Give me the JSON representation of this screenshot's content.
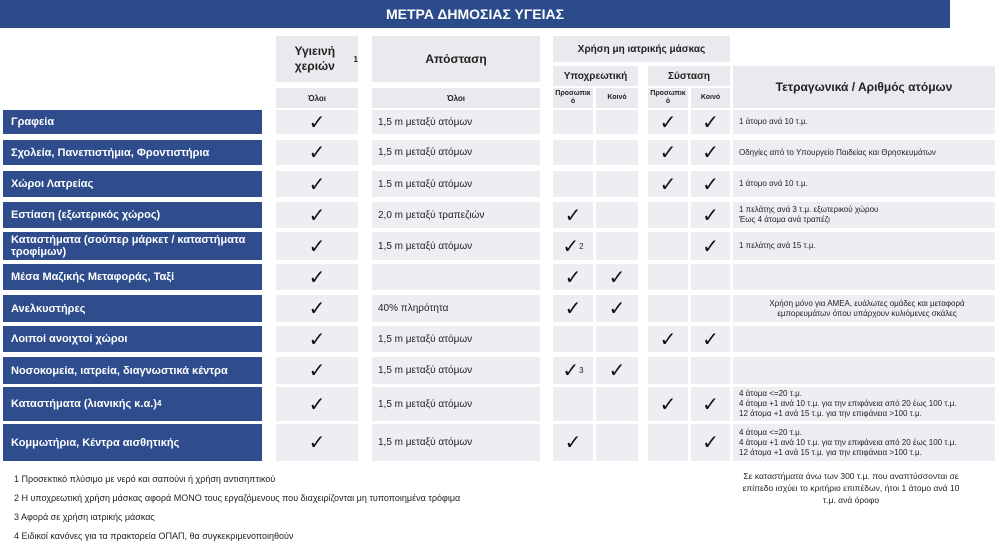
{
  "header": {
    "title": "ΜΕΤΡΑ ΔΗΜΟΣΙΑΣ ΥΓΕΙΑΣ"
  },
  "columns": {
    "hygiene": {
      "title": "Υγιεινή χεριών",
      "note": "1",
      "sub": "Όλοι"
    },
    "distance": {
      "title": "Απόσταση",
      "sub": "Όλοι"
    },
    "mask": {
      "title": "Χρήση μη ιατρικής μάσκας",
      "groups": [
        {
          "title": "Υποχρεωτική",
          "subs": [
            "Προσωπικό",
            "Κοινό"
          ]
        },
        {
          "title": "Σύσταση",
          "subs": [
            "Προσωπικό",
            "Κοινό"
          ]
        }
      ]
    },
    "area": {
      "title": "Τετραγωνικά / Αριθμός ατόμων"
    }
  },
  "rows": [
    {
      "label": "Γραφεία",
      "cells": [
        "✓",
        "1,5 m μεταξύ ατόμων",
        null,
        null,
        "✓",
        "✓"
      ],
      "area": [
        "1 άτομο ανά 10 τ.μ."
      ]
    },
    {
      "label": "Σχολεία, Πανεπιστήμια, Φροντιστήρια",
      "cells": [
        "✓",
        "1,5 m μεταξύ ατόμων",
        null,
        null,
        "✓",
        "✓"
      ],
      "area": [
        "Οδηγίες από το Υπουργείο Παιδείας και Θρησκευμάτων"
      ]
    },
    {
      "label": "Χώροι Λατρείας",
      "cells": [
        "✓",
        "1.5 m μεταξύ ατόμων",
        null,
        null,
        "✓",
        "✓"
      ],
      "area": [
        "1 άτομο ανά 10 τ.μ."
      ]
    },
    {
      "label": "Εστίαση (εξωτερικός χώρος)",
      "cells": [
        "✓",
        "2,0 m μεταξύ τραπεζιών",
        "✓",
        null,
        null,
        "✓"
      ],
      "area": [
        "1 πελάτης ανά 3 τ.μ. εξωτερικού χώρου",
        "Έως 4 άτομα ανά τραπέζι"
      ]
    },
    {
      "label": "Καταστήματα (σούπερ μάρκετ / καταστήματα τροφίμων)",
      "cells": [
        "✓",
        "1,5 m μεταξύ ατόμων",
        {
          "mark": "✓",
          "note": "2"
        },
        null,
        null,
        "✓"
      ],
      "area": [
        "1 πελάτης ανά 15 τ.μ."
      ]
    },
    {
      "label": "Μέσα Μαζικής Μεταφοράς, Ταξί",
      "cells": [
        "✓",
        null,
        "✓",
        "✓",
        null,
        null
      ],
      "area": null
    },
    {
      "label": "Ανελκυστήρες",
      "cells": [
        "✓",
        "40% πληρότητα",
        "✓",
        "✓",
        null,
        null
      ],
      "area": [
        "Χρήση μόνο για ΑΜΕΑ, ευάλωτες ομάδες και μεταφορά",
        "εμπορευμάτων όπου υπάρχουν κυλιόμενες σκάλες"
      ]
    },
    {
      "label": "Λοιποί ανοιχτοί χώροι",
      "cells": [
        "✓",
        "1,5 m μεταξύ ατόμων",
        null,
        null,
        "✓",
        "✓"
      ],
      "area": null
    },
    {
      "label": "Νοσοκομεία, ιατρεία, διαγνωστικά κέντρα",
      "cells": [
        "✓",
        "1,5 m μεταξύ ατόμων",
        {
          "mark": "✓",
          "note": "3"
        },
        "✓",
        null,
        null
      ],
      "area": null
    },
    {
      "label": "Καταστήματα (λιανικής κ.α.)",
      "note": "4",
      "cells": [
        "✓",
        "1,5 m μεταξύ ατόμων",
        null,
        null,
        "✓",
        "✓"
      ],
      "area": [
        "4 άτομα <=20 τ.μ.",
        "4 άτομα +1 ανά 10 τ.μ. για την επιφάνεια από 20 έως 100 τ.μ.",
        "12 άτομα +1 ανά 15 τ.μ. για την επιφάνεια >100 τ.μ."
      ]
    },
    {
      "label": "Κομμωτήρια, Κέντρα αισθητικής",
      "cells": [
        "✓",
        "1,5 m μεταξύ ατόμων",
        "✓",
        null,
        null,
        "✓"
      ],
      "area": [
        "4 άτομα <=20 τ.μ.",
        "4 άτομα +1 ανά 10 τ.μ. για την επιφάνεια από 20 έως 100 τ.μ.",
        "12 άτομα +1 ανά 15 τ.μ. για την επιφάνεια >100 τ.μ."
      ]
    }
  ],
  "area_note": "Σε καταστήματα άνω των 300 τ.μ. που αναπτύσσονται σε επίπεδο ισχύει το κριτήριο επιπέδων, ήτοι 1 άτομο ανά 10 τ.μ. ανά όροφο",
  "footnotes": [
    "1 Προσεκτικό πλύσιμο με νερό και σαπούνι ή χρήση αντισηπτικού",
    "2 Η υποχρεωτική χρήση μάσκας αφορά ΜΟΝΟ τους εργαζόμενους που διαχειρίζονται μη τυποποιημένα τρόφιμα",
    "3 Αφορά σε χρήση ιατρικής μάσκας",
    "4 Ειδικοί κανόνες για τα πρακτορεία ΟΠΑΠ, θα συγκεκριμενοποιηθούν"
  ]
}
